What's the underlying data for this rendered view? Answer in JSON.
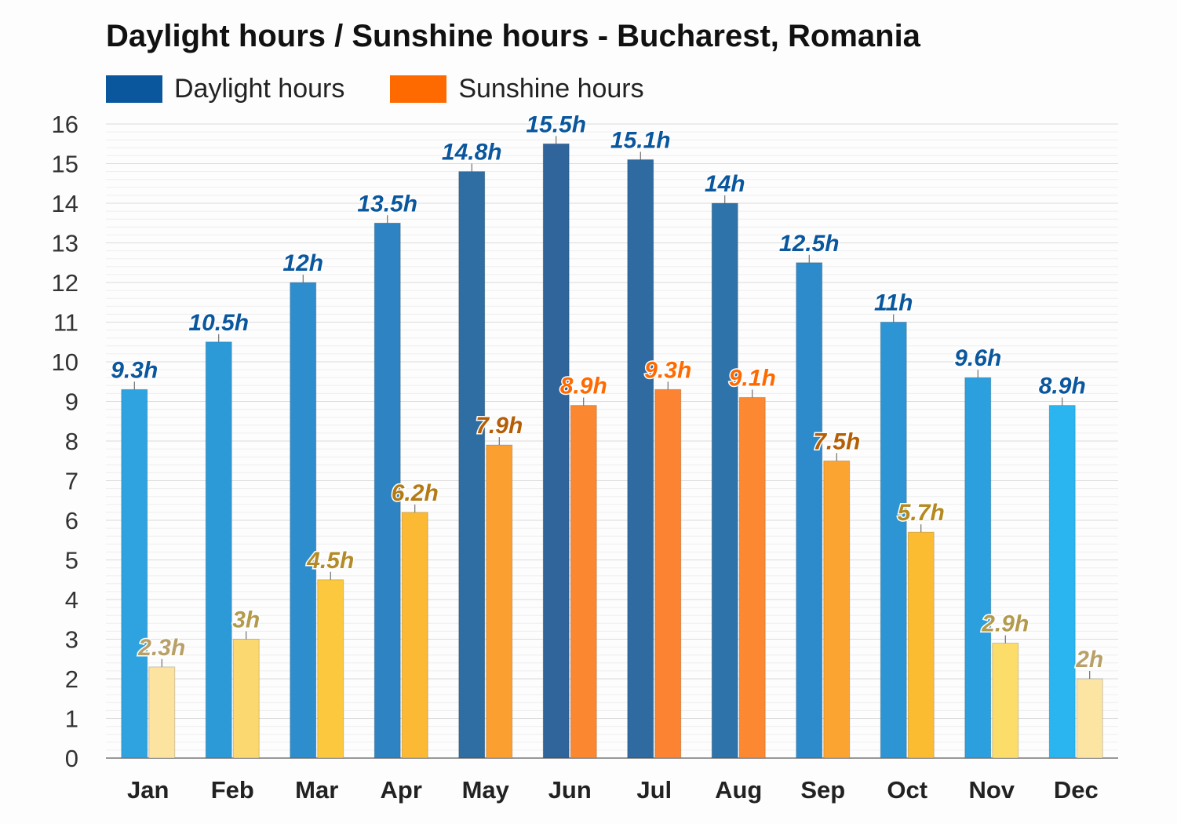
{
  "chart_data": {
    "type": "bar",
    "title": "Daylight hours / Sunshine hours - Bucharest, Romania",
    "categories": [
      "Jan",
      "Feb",
      "Mar",
      "Apr",
      "May",
      "Jun",
      "Jul",
      "Aug",
      "Sep",
      "Oct",
      "Nov",
      "Dec"
    ],
    "series": [
      {
        "name": "Daylight hours",
        "values": [
          9.3,
          10.5,
          12,
          13.5,
          14.8,
          15.5,
          15.1,
          14,
          12.5,
          11,
          9.6,
          8.9
        ],
        "labels": [
          "9.3h",
          "10.5h",
          "12h",
          "13.5h",
          "14.8h",
          "15.5h",
          "15.1h",
          "14h",
          "12.5h",
          "11h",
          "9.6h",
          "8.9h"
        ],
        "legend_color": "#0a579e",
        "label_color": "#0a579e",
        "bar_colors": [
          "#2ea3e0",
          "#2d9ad8",
          "#2e8ecd",
          "#2e83c3",
          "#2f6ea3",
          "#2f659b",
          "#2f6aa0",
          "#2f73ab",
          "#2e8bcb",
          "#2e95d4",
          "#2c9fde",
          "#2bb5f0"
        ]
      },
      {
        "name": "Sunshine hours",
        "values": [
          2.3,
          3,
          4.5,
          6.2,
          7.9,
          8.9,
          9.3,
          9.1,
          7.5,
          5.7,
          2.9,
          2
        ],
        "labels": [
          "2.3h",
          "3h",
          "4.5h",
          "6.2h",
          "7.9h",
          "8.9h",
          "9.3h",
          "9.1h",
          "7.5h",
          "5.7h",
          "2.9h",
          "2h"
        ],
        "legend_color": "#ff6a00",
        "bar_colors": [
          "#fce3a0",
          "#fcd870",
          "#fcc93e",
          "#fcb933",
          "#fc9f31",
          "#fc8731",
          "#fc8331",
          "#fc8931",
          "#fca431",
          "#fcbc32",
          "#fcdd6a",
          "#fce5a2"
        ],
        "label_colors": [
          "#b8a068",
          "#b49a4d",
          "#b48b28",
          "#b47a14",
          "#b45f05",
          "#ff6a00",
          "#ff6a00",
          "#ff6a00",
          "#b45f05",
          "#b48a20",
          "#b49a4d",
          "#b8a068"
        ]
      }
    ],
    "ylim": [
      0,
      16
    ],
    "yticks": [
      0,
      1,
      2,
      3,
      4,
      5,
      6,
      7,
      8,
      9,
      10,
      11,
      12,
      13,
      14,
      15,
      16
    ],
    "grid": true,
    "legend_position": "top-left"
  }
}
